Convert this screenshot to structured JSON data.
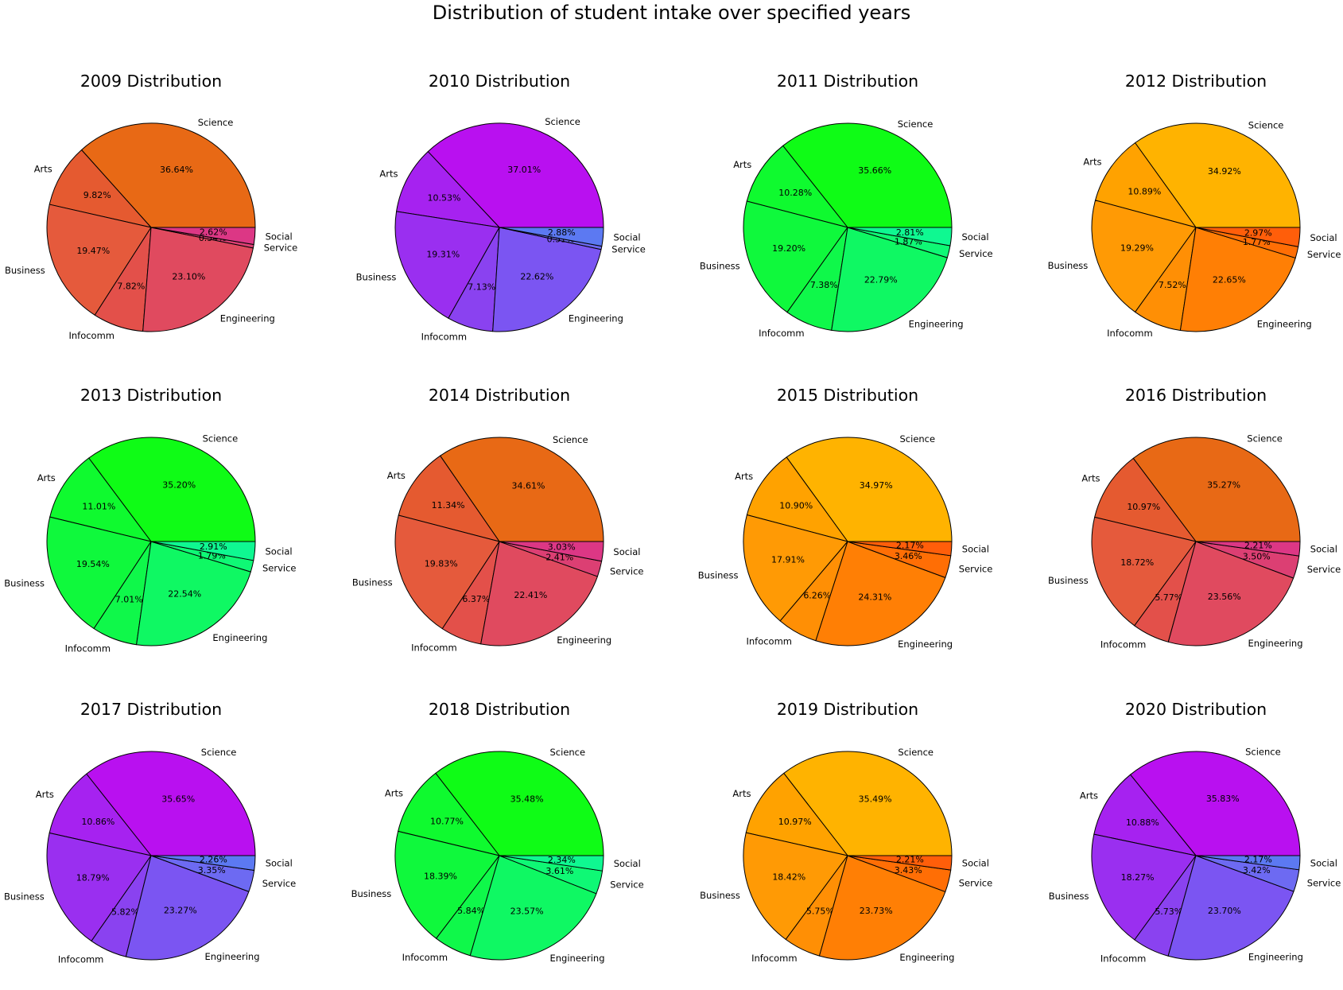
{
  "suptitle": "Distribution of student intake over specified years",
  "chart_data": {
    "type": "pie",
    "title": "Distribution of student intake over specified years",
    "categories": [
      "Science",
      "Arts",
      "Business",
      "Infocomm",
      "Engineering",
      "Service",
      "Social"
    ],
    "pies": [
      {
        "title": "2009 Distribution",
        "values": [
          36.64,
          9.82,
          19.47,
          7.82,
          23.1,
          0.54,
          2.62
        ],
        "colors": [
          "#e86915",
          "#e55a30",
          "#e55a3c",
          "#e3504a",
          "#e04a5f",
          "#dc3f73",
          "#dc3785"
        ]
      },
      {
        "title": "2010 Distribution",
        "values": [
          37.01,
          10.53,
          19.31,
          7.13,
          22.62,
          0.51,
          2.88
        ],
        "colors": [
          "#b910f0",
          "#a622f0",
          "#9a2ff0",
          "#8a42f0",
          "#7b55f2",
          "#6d6af2",
          "#5c79f2"
        ]
      },
      {
        "title": "2011 Distribution",
        "values": [
          35.66,
          10.28,
          19.2,
          7.38,
          22.79,
          1.87,
          2.81
        ],
        "colors": [
          "#0ffc16",
          "#0ffa2f",
          "#0ff93c",
          "#0ff84a",
          "#0ff863",
          "#0ff875",
          "#0ff891"
        ]
      },
      {
        "title": "2012 Distribution",
        "values": [
          34.92,
          10.89,
          19.29,
          7.52,
          22.65,
          1.77,
          2.97
        ],
        "colors": [
          "#ffb300",
          "#ffa200",
          "#ff9a05",
          "#ff8f05",
          "#ff7f05",
          "#ff6e05",
          "#ff5e0a"
        ]
      },
      {
        "title": "2013 Distribution",
        "values": [
          35.2,
          11.01,
          19.54,
          7.01,
          22.54,
          1.79,
          2.91
        ],
        "colors": [
          "#0ffc16",
          "#0ffa2f",
          "#0ff93c",
          "#0ff84a",
          "#0ff863",
          "#0ff875",
          "#0ff891"
        ]
      },
      {
        "title": "2014 Distribution",
        "values": [
          34.61,
          11.34,
          19.83,
          6.37,
          22.41,
          2.41,
          3.03
        ],
        "colors": [
          "#e86915",
          "#e55a30",
          "#e55a3c",
          "#e3504a",
          "#e04a5f",
          "#dc3f73",
          "#dc3785"
        ]
      },
      {
        "title": "2015 Distribution",
        "values": [
          34.97,
          10.9,
          17.91,
          6.26,
          24.31,
          3.46,
          2.17
        ],
        "colors": [
          "#ffb300",
          "#ffa200",
          "#ff9a05",
          "#ff8f05",
          "#ff7f05",
          "#ff6e05",
          "#ff5e0a"
        ]
      },
      {
        "title": "2016 Distribution",
        "values": [
          35.27,
          10.97,
          18.72,
          5.77,
          23.56,
          3.5,
          2.21
        ],
        "colors": [
          "#e86915",
          "#e55a30",
          "#e55a3c",
          "#e3504a",
          "#e04a5f",
          "#dc3f73",
          "#dc3785"
        ]
      },
      {
        "title": "2017 Distribution",
        "values": [
          35.65,
          10.86,
          18.79,
          5.82,
          23.27,
          3.35,
          2.26
        ],
        "colors": [
          "#b910f0",
          "#a622f0",
          "#9a2ff0",
          "#8a42f0",
          "#7b55f2",
          "#6d6af2",
          "#5c79f2"
        ]
      },
      {
        "title": "2018 Distribution",
        "values": [
          35.48,
          10.77,
          18.39,
          5.84,
          23.57,
          3.61,
          2.34
        ],
        "colors": [
          "#0ffc16",
          "#0ffa2f",
          "#0ff93c",
          "#0ff84a",
          "#0ff863",
          "#0ff875",
          "#0ff891"
        ]
      },
      {
        "title": "2019 Distribution",
        "values": [
          35.49,
          10.97,
          18.42,
          5.75,
          23.73,
          3.43,
          2.21
        ],
        "colors": [
          "#ffb300",
          "#ffa200",
          "#ff9a05",
          "#ff8f05",
          "#ff7f05",
          "#ff6e05",
          "#ff5e0a"
        ]
      },
      {
        "title": "2020 Distribution",
        "values": [
          35.83,
          10.88,
          18.27,
          5.73,
          23.7,
          3.42,
          2.17
        ],
        "colors": [
          "#b910f0",
          "#a622f0",
          "#9a2ff0",
          "#8a42f0",
          "#7b55f2",
          "#6d6af2",
          "#5c79f2"
        ]
      }
    ],
    "grid": "3x4",
    "start_angle": 0,
    "direction": "counterclockwise",
    "edge_color": "#000000"
  }
}
